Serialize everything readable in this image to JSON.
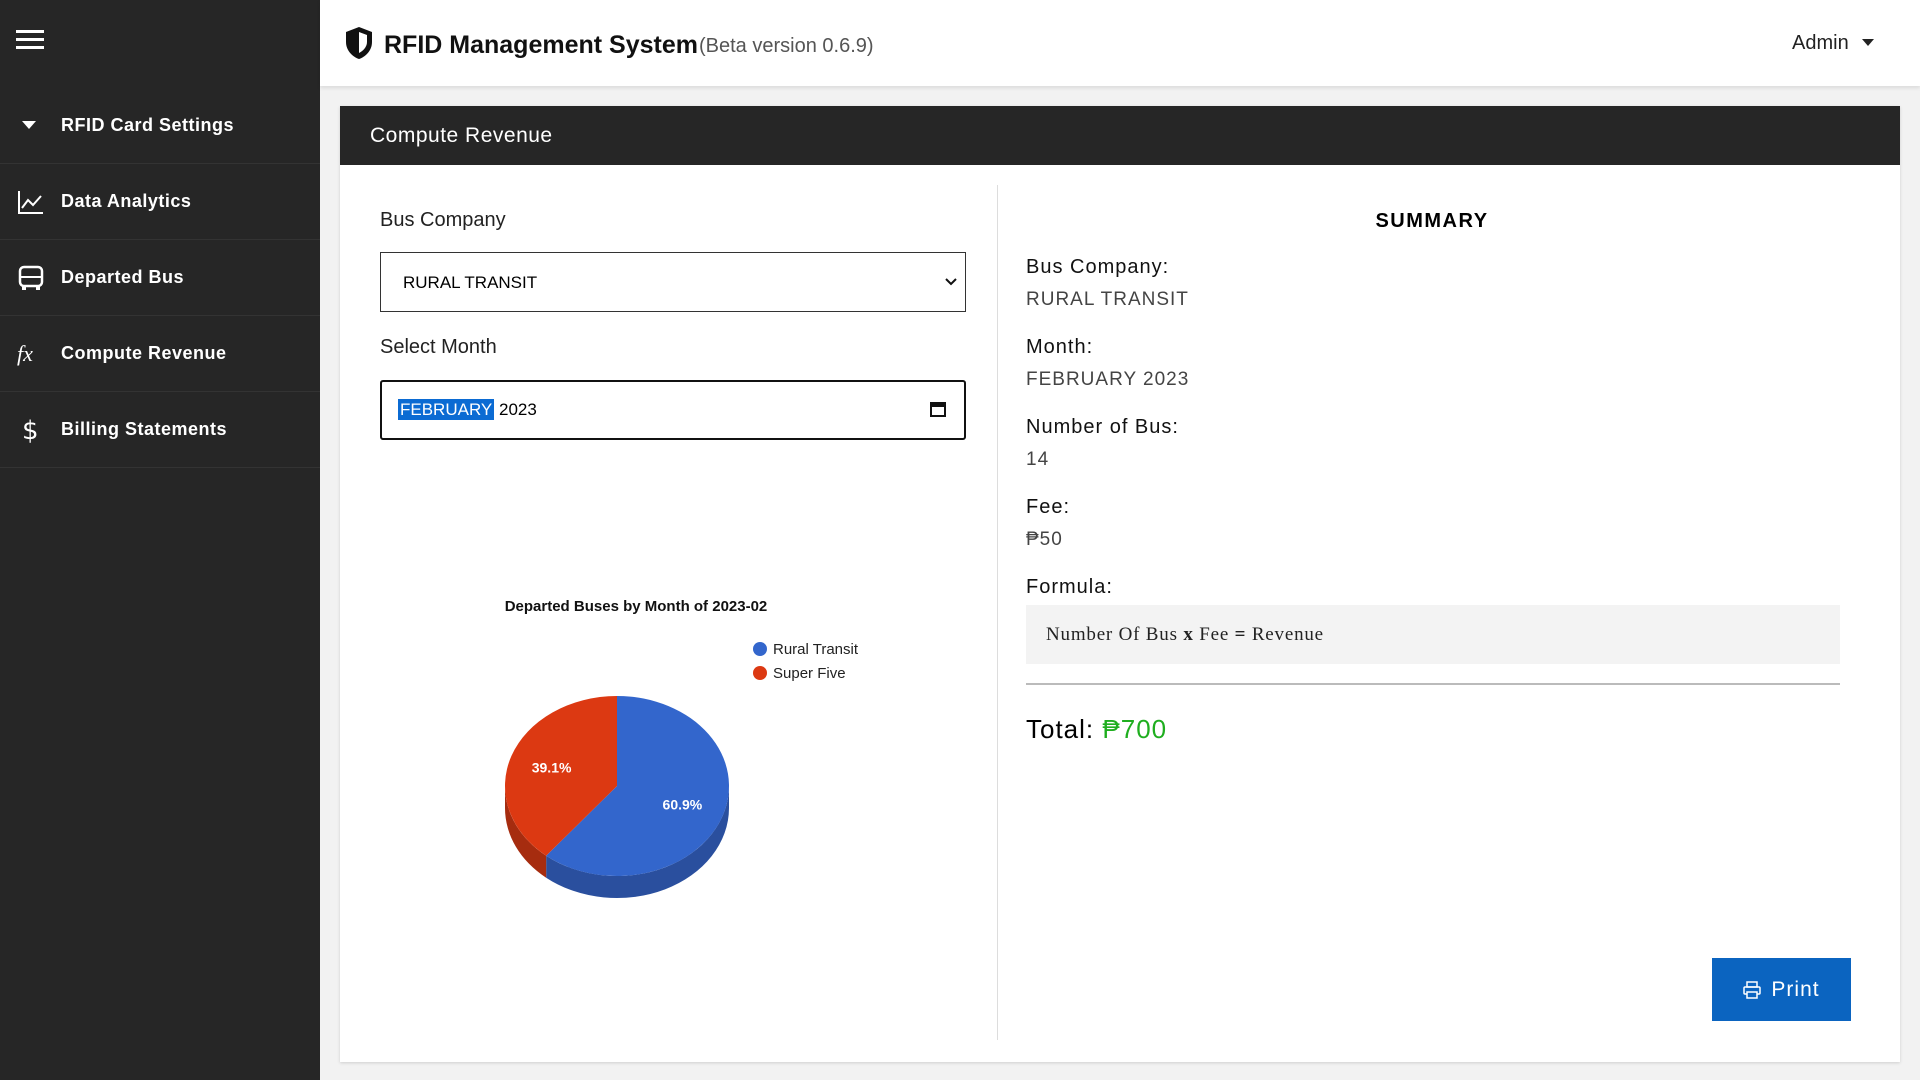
{
  "header": {
    "title": "RFID Management System",
    "version": "(Beta version 0.6.9)",
    "user": "Admin"
  },
  "sidebar": {
    "items": [
      "RFID Card Settings",
      "Data Analytics",
      "Departed Bus",
      "Compute Revenue",
      "Billing Statements"
    ]
  },
  "card": {
    "title": "Compute Revenue"
  },
  "form": {
    "company_label": "Bus Company",
    "company_value": "RURAL TRANSIT",
    "month_label": "Select Month",
    "month_value": "FEBRUARY",
    "year_value": "2023"
  },
  "chart_data": {
    "type": "pie",
    "title": "Departed Buses by Month of 2023-02",
    "categories": [
      "Rural Transit",
      "Super Five"
    ],
    "values": [
      60.9,
      39.1
    ],
    "value_labels": [
      "60.9%",
      "39.1%"
    ],
    "colors": [
      "#3366cc",
      "#dc3912"
    ],
    "side_colors": [
      "#2a4f9e",
      "#a62c0f"
    ],
    "legend": "top-right"
  },
  "summary": {
    "title": "SUMMARY",
    "fields": [
      {
        "label": "Bus Company:",
        "value": "RURAL TRANSIT"
      },
      {
        "label": "Month:",
        "value": "FEBRUARY 2023"
      },
      {
        "label": "Number of Bus:",
        "value": "14"
      },
      {
        "label": "Fee:",
        "value": "₱50"
      }
    ],
    "formula_label": "Formula:",
    "formula": [
      "Number Of Bus",
      "x",
      "Fee",
      "=",
      "Revenue"
    ],
    "total_label": "Total:",
    "total_value": "₱700"
  },
  "print_button": "Print"
}
